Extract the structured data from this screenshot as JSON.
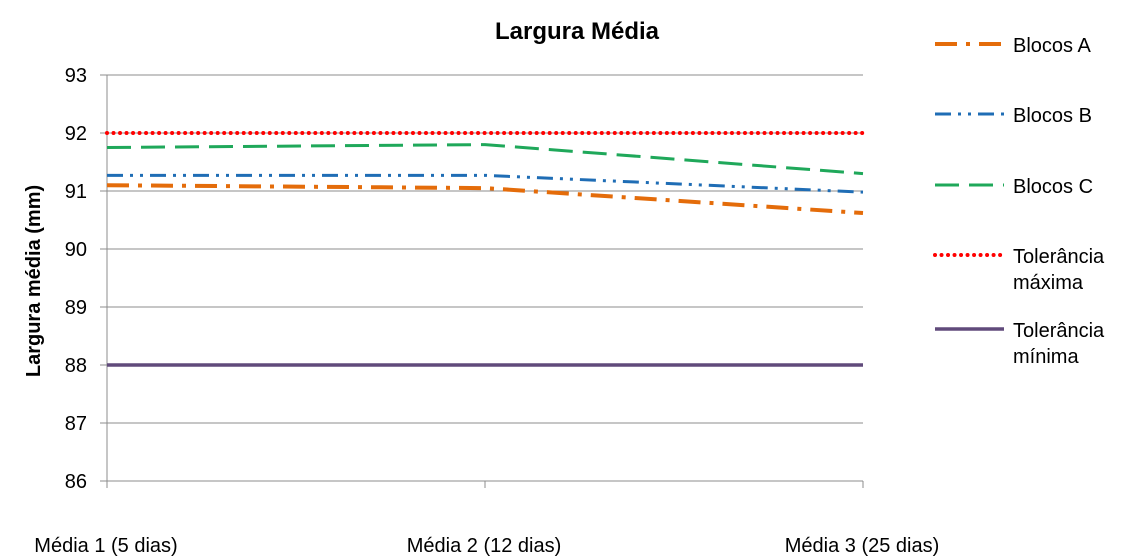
{
  "chart_data": {
    "type": "line",
    "title": "Largura Média",
    "xlabel": "",
    "ylabel": "Largura média (mm)",
    "categories": [
      "Média 1 (5 dias)",
      "Média 2 (12 dias)",
      "Média 3 (25 dias)"
    ],
    "ylim": [
      86,
      93
    ],
    "yticks": [
      "86",
      "87",
      "88",
      "89",
      "90",
      "91",
      "92",
      "93"
    ],
    "grid": "horizontal",
    "legend_position": "right",
    "series": [
      {
        "name": "Blocos A",
        "values": [
          91.1,
          91.05,
          90.62
        ],
        "color": "#E46C0A",
        "dash": "long-dash-dot"
      },
      {
        "name": "Blocos B",
        "values": [
          91.27,
          91.27,
          90.98
        ],
        "color": "#1F6DB5",
        "dash": "long-dash-dot-dot"
      },
      {
        "name": "Blocos C",
        "values": [
          91.75,
          91.8,
          91.3
        ],
        "color": "#1FA85A",
        "dash": "long-dash"
      },
      {
        "name": "Tolerância máxima",
        "name_lines": [
          "Tolerância",
          "máxima"
        ],
        "values": [
          92,
          92,
          92
        ],
        "color": "#FF0000",
        "dash": "round-dot"
      },
      {
        "name": "Tolerância mínima",
        "name_lines": [
          "Tolerância",
          "mínima"
        ],
        "values": [
          88,
          88,
          88
        ],
        "color": "#604A7B",
        "dash": "solid"
      }
    ]
  }
}
